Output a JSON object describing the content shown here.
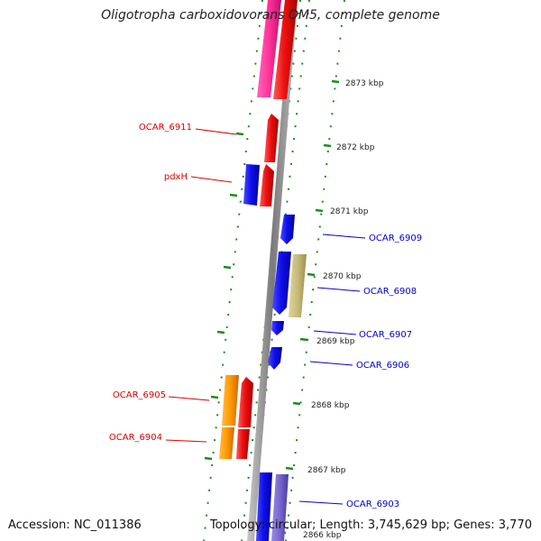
{
  "title": "Oligotropha carboxidovorans OM5, complete genome",
  "accession": "Accession: NC_011386",
  "summary": "Topology: circular; Length: 3,745,629 bp; Genes: 3,770",
  "colors": {
    "backbone": "#8c8c8c",
    "tick": "#1e8c1e",
    "forward_gene": "#ee1111",
    "reverse_gene": "#1111ee",
    "label_red": "#dd0000",
    "label_blue": "#0000cc",
    "pink": "#ff3399",
    "orange": "#ff9900",
    "khaki": "#c8bb78",
    "lavender": "#7766cc"
  },
  "scale_labels": [
    "2873 kbp",
    "2872 kbp",
    "2871 kbp",
    "2870 kbp",
    "2869 kbp",
    "2868 kbp",
    "2867 kbp",
    "2866 kbp"
  ],
  "gene_labels": {
    "left": [
      "OCAR_6911",
      "pdxH",
      "OCAR_6905",
      "OCAR_6904"
    ],
    "right": [
      "OCAR_6909",
      "OCAR_6908",
      "OCAR_6907",
      "OCAR_6906",
      "OCAR_6903"
    ]
  }
}
